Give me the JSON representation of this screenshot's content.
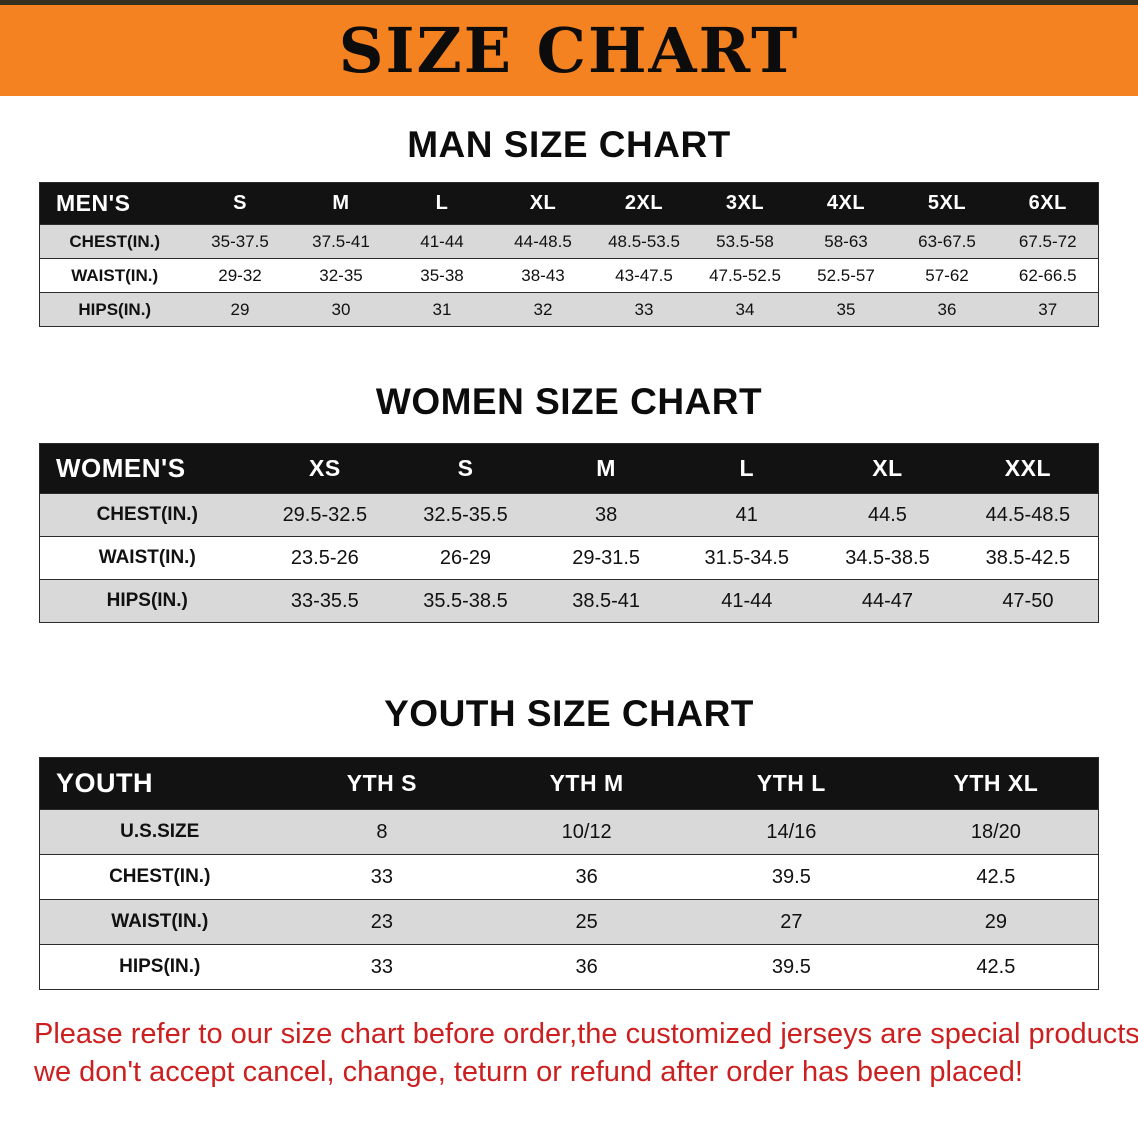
{
  "banner": {
    "title": "SIZE CHART"
  },
  "chart_data": [
    {
      "type": "table",
      "title": "MAN SIZE CHART",
      "columns": [
        "MEN'S",
        "S",
        "M",
        "L",
        "XL",
        "2XL",
        "3XL",
        "4XL",
        "5XL",
        "6XL"
      ],
      "rows": [
        [
          "CHEST(IN.)",
          "35-37.5",
          "37.5-41",
          "41-44",
          "44-48.5",
          "48.5-53.5",
          "53.5-58",
          "58-63",
          "63-67.5",
          "67.5-72"
        ],
        [
          "WAIST(IN.)",
          "29-32",
          "32-35",
          "35-38",
          "38-43",
          "43-47.5",
          "47.5-52.5",
          "52.5-57",
          "57-62",
          "62-66.5"
        ],
        [
          "HIPS(IN.)",
          "29",
          "30",
          "31",
          "32",
          "33",
          "34",
          "35",
          "36",
          "37"
        ]
      ]
    },
    {
      "type": "table",
      "title": "WOMEN SIZE CHART",
      "columns": [
        "WOMEN'S",
        "XS",
        "S",
        "M",
        "L",
        "XL",
        "XXL"
      ],
      "rows": [
        [
          "CHEST(IN.)",
          "29.5-32.5",
          "32.5-35.5",
          "38",
          "41",
          "44.5",
          "44.5-48.5"
        ],
        [
          "WAIST(IN.)",
          "23.5-26",
          "26-29",
          "29-31.5",
          "31.5-34.5",
          "34.5-38.5",
          "38.5-42.5"
        ],
        [
          "HIPS(IN.)",
          "33-35.5",
          "35.5-38.5",
          "38.5-41",
          "41-44",
          "44-47",
          "47-50"
        ]
      ]
    },
    {
      "type": "table",
      "title": "YOUTH SIZE CHART",
      "columns": [
        "YOUTH",
        "YTH S",
        "YTH M",
        "YTH L",
        "YTH XL"
      ],
      "rows": [
        [
          "U.S.SIZE",
          "8",
          "10/12",
          "14/16",
          "18/20"
        ],
        [
          "CHEST(IN.)",
          "33",
          "36",
          "39.5",
          "42.5"
        ],
        [
          "WAIST(IN.)",
          "23",
          "25",
          "27",
          "29"
        ],
        [
          "HIPS(IN.)",
          "33",
          "36",
          "39.5",
          "42.5"
        ]
      ]
    }
  ],
  "footer": {
    "lines": [
      "Please refer to our size chart before order,the customized jerseys are special products,",
      "we don't accept cancel, change, teturn or refund after order has been placed!"
    ]
  },
  "colors": {
    "banner_bg": "#f58220",
    "table_header_bg": "#121212",
    "table_header_text": "#ffffff",
    "row_shade": "#d9d9d9",
    "notice_text": "#cc1f1f"
  }
}
